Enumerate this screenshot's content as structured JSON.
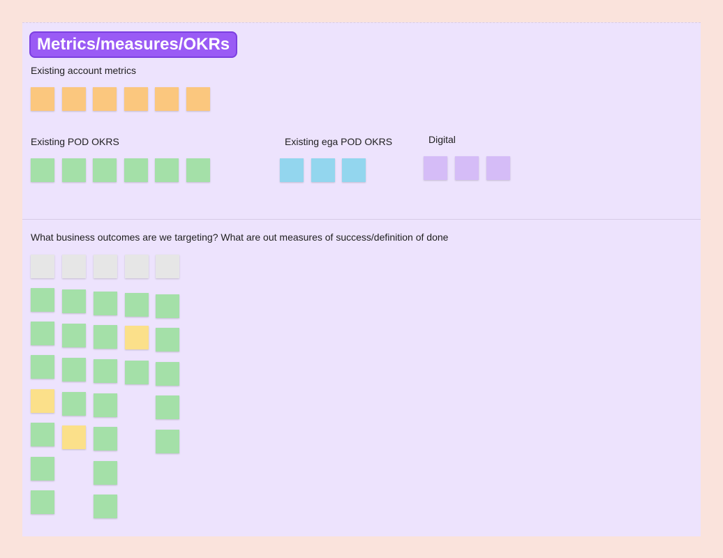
{
  "board": {
    "title": "Metrics/measures/OKRs",
    "sections": [
      {
        "heading": "Existing account metrics",
        "notes": [
          "#fbc77e",
          "#fbc77e",
          "#fbc77e",
          "#fbc77e",
          "#fbc77e",
          "#fbc77e"
        ]
      },
      {
        "heading": "Existing POD OKRS",
        "notes": [
          "#a4e0a8",
          "#a4e0a8",
          "#a4e0a8",
          "#a4e0a8",
          "#a4e0a8",
          "#a4e0a8"
        ]
      },
      {
        "heading": "Existing ega POD OKRS",
        "notes": [
          "#93d6ee",
          "#93d6ee",
          "#93d6ee"
        ]
      },
      {
        "heading": "Digital",
        "notes": [
          "#d5bcf7",
          "#d5bcf7",
          "#d5bcf7"
        ]
      }
    ],
    "question": {
      "heading": "What business outcomes are we targeting? What are out measures of success/definition of done",
      "columns": [
        [
          "#e6e6e6",
          "#a4e0a8",
          "#a4e0a8",
          "#a4e0a8",
          "#fbe08a",
          "#a4e0a8",
          "#a4e0a8",
          "#a4e0a8"
        ],
        [
          "#e6e6e6",
          "#a4e0a8",
          "#a4e0a8",
          "#a4e0a8",
          "#a4e0a8",
          "#fbe08a"
        ],
        [
          "#e6e6e6",
          "#a4e0a8",
          "#a4e0a8",
          "#a4e0a8",
          "#a4e0a8",
          "#a4e0a8",
          "#a4e0a8",
          "#a4e0a8"
        ],
        [
          "#e6e6e6",
          "#a4e0a8",
          "#fbe08a",
          "#a4e0a8"
        ],
        [
          "#e6e6e6",
          "#a4e0a8",
          "#a4e0a8",
          "#a4e0a8",
          "#a4e0a8",
          "#a4e0a8"
        ]
      ]
    }
  }
}
